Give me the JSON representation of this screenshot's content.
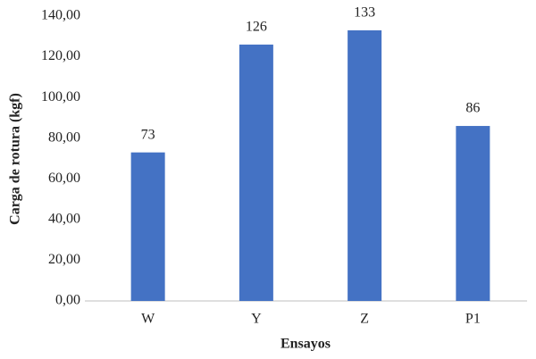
{
  "chart_data": {
    "type": "bar",
    "x_label": "Ensayos",
    "y_label": "Carga de rotura (kgf)",
    "categories": [
      "W",
      "Y",
      "Z",
      "P1"
    ],
    "values": [
      73,
      126,
      133,
      86
    ],
    "color": "#4472c4",
    "ylim": [
      0,
      140
    ],
    "yticks": [
      {
        "value": 0,
        "label": "0,00"
      },
      {
        "value": 20,
        "label": "20,00"
      },
      {
        "value": 40,
        "label": "40,00"
      },
      {
        "value": 60,
        "label": "60,00"
      },
      {
        "value": 80,
        "label": "80,00"
      },
      {
        "value": 100,
        "label": "100,00"
      },
      {
        "value": 120,
        "label": "120,00"
      },
      {
        "value": 140,
        "label": "140,00"
      }
    ],
    "grid": false
  }
}
